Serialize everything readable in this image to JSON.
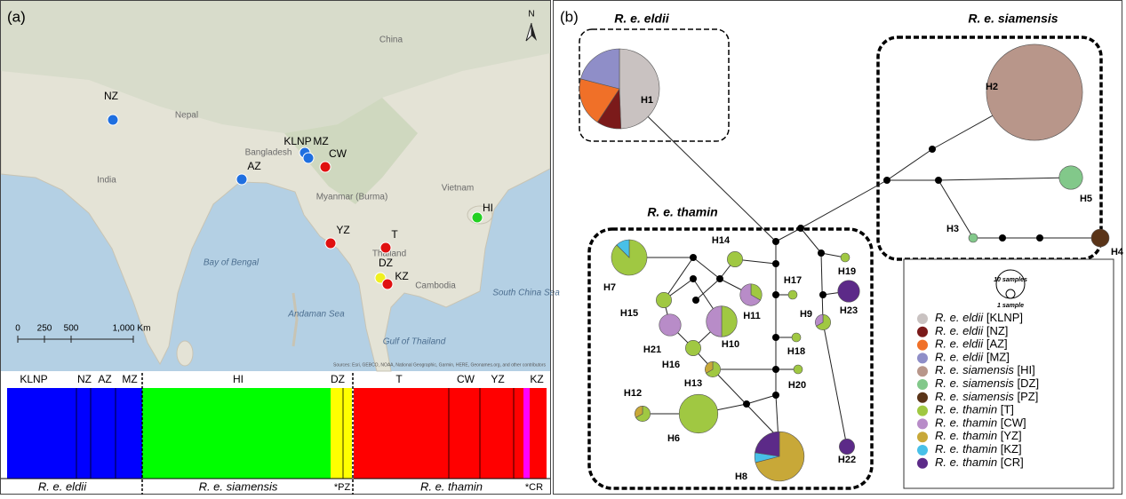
{
  "panel_a": {
    "label": "(a)",
    "north": "N",
    "map_labels": [
      "China",
      "Nepal",
      "Bangladesh",
      "India",
      "Myanmar (Burma)",
      "Thailand",
      "Cambodia",
      "Vietnam",
      "Bay of Bengal",
      "Andaman Sea",
      "Gulf of Thailand",
      "South China Sea"
    ],
    "attribution": "Sources: Esri, GEBCO, NOAA, National Geographic, Garmin, HERE, Geonames.org, and other contributors",
    "scale_labels": [
      "0",
      "250",
      "500",
      "1,000 Km"
    ],
    "sites": [
      {
        "name": "NZ",
        "color": "#1f6fe0"
      },
      {
        "name": "KLNP",
        "color": "#1f6fe0"
      },
      {
        "name": "MZ",
        "color": "#1f6fe0"
      },
      {
        "name": "AZ",
        "color": "#1f6fe0"
      },
      {
        "name": "CW",
        "color": "#e01010"
      },
      {
        "name": "HI",
        "color": "#22d022"
      },
      {
        "name": "YZ",
        "color": "#e01010"
      },
      {
        "name": "T",
        "color": "#e01010"
      },
      {
        "name": "DZ",
        "color": "#f0f020"
      },
      {
        "name": "KZ",
        "color": "#e01010"
      }
    ],
    "structure_top": [
      "KLNP",
      "NZ",
      "AZ",
      "MZ",
      "HI",
      "DZ",
      "T",
      "CW",
      "YZ",
      "KZ"
    ],
    "structure_bottom": [
      "R. e. eldii",
      "R. e. siamensis",
      "*PZ",
      "R. e. thamin",
      "*CR"
    ]
  },
  "panel_b": {
    "label": "(b)",
    "groups": [
      "R. e. eldii",
      "R. e. siamensis",
      "R. e. thamin"
    ],
    "size_legend": [
      "10 samples",
      "1 sample"
    ],
    "legend": [
      {
        "species": "R. e. eldii",
        "code": "[KLNP]",
        "color": "#c9c2c1"
      },
      {
        "species": "R. e. eldii",
        "code": "[NZ]",
        "color": "#7b1a1a"
      },
      {
        "species": "R. e. eldii",
        "code": "[AZ]",
        "color": "#f07028"
      },
      {
        "species": "R. e. eldii",
        "code": "[MZ]",
        "color": "#8f8ec8"
      },
      {
        "species": "R. e. siamensis",
        "code": "[HI]",
        "color": "#b8968a"
      },
      {
        "species": "R. e. siamensis",
        "code": "[DZ]",
        "color": "#82c88a"
      },
      {
        "species": "R. e. siamensis",
        "code": "[PZ]",
        "color": "#5a3418"
      },
      {
        "species": "R. e. thamin",
        "code": "[T]",
        "color": "#a0c842"
      },
      {
        "species": "R. e. thamin",
        "code": "[CW]",
        "color": "#b88cc8"
      },
      {
        "species": "R. e. thamin",
        "code": "[YZ]",
        "color": "#c8a838"
      },
      {
        "species": "R. e. thamin",
        "code": "[KZ]",
        "color": "#48c0e8"
      },
      {
        "species": "R. e. thamin",
        "code": "[CR]",
        "color": "#5c2a88"
      }
    ],
    "haplotypes": [
      {
        "label": "H1",
        "slices": [
          {
            "color": "#c9c2c1",
            "n": 40
          },
          {
            "color": "#7b1a1a",
            "n": 8
          },
          {
            "color": "#f07028",
            "n": 16
          },
          {
            "color": "#8f8ec8",
            "n": 17
          }
        ]
      },
      {
        "label": "H2",
        "slices": [
          {
            "color": "#b8968a",
            "n": 117
          }
        ]
      },
      {
        "label": "H3",
        "slices": [
          {
            "color": "#82c88a",
            "n": 1
          }
        ]
      },
      {
        "label": "H4",
        "slices": [
          {
            "color": "#5a3418",
            "n": 4
          }
        ]
      },
      {
        "label": "H5",
        "slices": [
          {
            "color": "#82c88a",
            "n": 7
          }
        ]
      },
      {
        "label": "H6",
        "slices": [
          {
            "color": "#a0c842",
            "n": 19
          }
        ]
      },
      {
        "label": "H7",
        "slices": [
          {
            "color": "#a0c842",
            "n": 14
          },
          {
            "color": "#48c0e8",
            "n": 2
          }
        ]
      },
      {
        "label": "H8",
        "slices": [
          {
            "color": "#c8a838",
            "n": 22
          },
          {
            "color": "#48c0e8",
            "n": 2
          },
          {
            "color": "#5c2a88",
            "n": 7
          }
        ]
      },
      {
        "label": "H9",
        "slices": [
          {
            "color": "#a0c842",
            "n": 2
          },
          {
            "color": "#b88cc8",
            "n": 1
          }
        ]
      },
      {
        "label": "H10",
        "slices": [
          {
            "color": "#a0c842",
            "n": 6
          },
          {
            "color": "#b88cc8",
            "n": 6
          }
        ]
      },
      {
        "label": "H11",
        "slices": [
          {
            "color": "#a0c842",
            "n": 2
          },
          {
            "color": "#b88cc8",
            "n": 4
          }
        ]
      },
      {
        "label": "H12",
        "slices": [
          {
            "color": "#a0c842",
            "n": 2
          },
          {
            "color": "#c8a838",
            "n": 1
          }
        ]
      },
      {
        "label": "H13",
        "slices": [
          {
            "color": "#a0c842",
            "n": 2
          },
          {
            "color": "#c8a838",
            "n": 1
          }
        ]
      },
      {
        "label": "H14",
        "slices": [
          {
            "color": "#a0c842",
            "n": 3
          }
        ]
      },
      {
        "label": "H15",
        "slices": [
          {
            "color": "#a0c842",
            "n": 3
          }
        ]
      },
      {
        "label": "H16",
        "slices": [
          {
            "color": "#a0c842",
            "n": 3
          }
        ]
      },
      {
        "label": "H17",
        "slices": [
          {
            "color": "#a0c842",
            "n": 1
          }
        ]
      },
      {
        "label": "H18",
        "slices": [
          {
            "color": "#a0c842",
            "n": 1
          }
        ]
      },
      {
        "label": "H19",
        "slices": [
          {
            "color": "#a0c842",
            "n": 1
          }
        ]
      },
      {
        "label": "H20",
        "slices": [
          {
            "color": "#a0c842",
            "n": 1
          }
        ]
      },
      {
        "label": "H21",
        "slices": [
          {
            "color": "#b88cc8",
            "n": 6
          }
        ]
      },
      {
        "label": "H22",
        "slices": [
          {
            "color": "#5c2a88",
            "n": 3
          }
        ]
      },
      {
        "label": "H23",
        "slices": [
          {
            "color": "#5c2a88",
            "n": 6
          }
        ]
      }
    ]
  }
}
